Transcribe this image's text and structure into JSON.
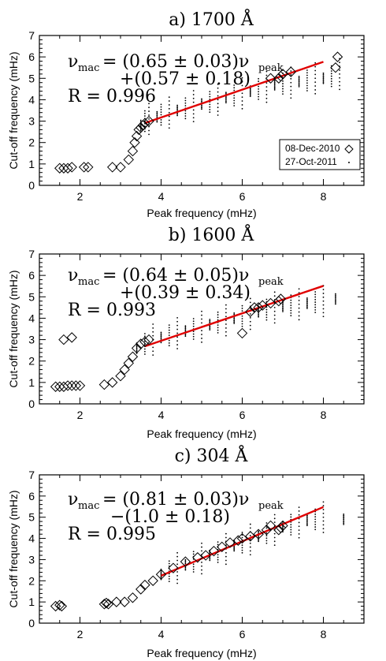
{
  "chart_data": [
    {
      "type": "scatter",
      "title": "a) 1700 Å",
      "xlabel": "Peak frequency (mHz)",
      "ylabel": "Cut-off frequency (mHz)",
      "xlim": [
        1.0,
        9.0
      ],
      "ylim": [
        0,
        7
      ],
      "xticks": [
        2,
        4,
        6,
        8
      ],
      "yticks": [
        0,
        1,
        2,
        3,
        4,
        5,
        6,
        7
      ],
      "equation": {
        "lhs": "ν",
        "lhs_sub": "mac",
        "line1": "= (0.65 ± 0.03)ν",
        "line1_sub": "peak",
        "line2": "+(0.57 ± 0.18)",
        "r": "R = 0.996"
      },
      "fit": {
        "x": [
          3.6,
          8.0
        ],
        "y": [
          2.91,
          5.77
        ],
        "color": "#e00000"
      },
      "legend": {
        "position": "bottom-right",
        "entries": [
          "08-Dec-2010",
          "27-Oct-2011"
        ]
      },
      "series": [
        {
          "name": "08-Dec-2010",
          "marker": "diamond",
          "x": [
            1.5,
            1.6,
            1.7,
            1.8,
            2.1,
            2.2,
            2.8,
            3.0,
            3.2,
            3.3,
            3.35,
            3.4,
            3.45,
            3.5,
            3.55,
            3.6,
            3.7,
            6.7,
            6.9,
            6.95,
            7.0,
            7.2,
            8.3,
            8.35
          ],
          "y": [
            0.8,
            0.8,
            0.8,
            0.85,
            0.85,
            0.85,
            0.85,
            0.85,
            1.2,
            1.6,
            2.0,
            2.3,
            2.6,
            2.7,
            2.8,
            2.9,
            3.0,
            5.0,
            5.0,
            5.1,
            5.2,
            5.3,
            5.5,
            6.0
          ]
        },
        {
          "name": "27-Oct-2011",
          "marker": "dot",
          "x": [
            3.5,
            3.6,
            3.7,
            3.9,
            4.0,
            4.2,
            4.4,
            4.6,
            4.8,
            5.0,
            5.2,
            5.4,
            5.6,
            5.8,
            6.0,
            6.2,
            6.4,
            6.6,
            6.8,
            7.0,
            7.2,
            7.4,
            7.6,
            7.8,
            8.0,
            8.2,
            8.4
          ],
          "y": [
            2.8,
            3.0,
            3.1,
            3.2,
            3.3,
            3.4,
            3.5,
            3.6,
            3.7,
            3.8,
            3.9,
            4.0,
            4.1,
            4.2,
            4.3,
            4.4,
            4.5,
            4.6,
            4.7,
            4.75,
            4.8,
            4.85,
            4.9,
            5.0,
            5.0,
            5.1,
            5.2
          ]
        }
      ]
    },
    {
      "type": "scatter",
      "title": "b) 1600 Å",
      "xlabel": "Peak frequency (mHz)",
      "ylabel": "Cut-off frequency (mHz)",
      "xlim": [
        1.0,
        9.0
      ],
      "ylim": [
        0,
        7
      ],
      "xticks": [
        2,
        4,
        6,
        8
      ],
      "yticks": [
        0,
        1,
        2,
        3,
        4,
        5,
        6,
        7
      ],
      "equation": {
        "lhs": "ν",
        "lhs_sub": "mac",
        "line1": "= (0.64 ± 0.05)ν",
        "line1_sub": "peak",
        "line2": "+(0.39 ± 0.34)",
        "r": "R = 0.993"
      },
      "fit": {
        "x": [
          3.6,
          8.0
        ],
        "y": [
          2.69,
          5.51
        ],
        "color": "#e00000"
      },
      "series": [
        {
          "name": "08-Dec-2010",
          "marker": "diamond",
          "x": [
            1.4,
            1.5,
            1.6,
            1.7,
            1.8,
            1.9,
            2.0,
            1.6,
            1.8,
            2.6,
            2.8,
            3.0,
            3.1,
            3.2,
            3.3,
            3.4,
            3.5,
            3.6,
            3.7,
            6.0,
            6.2,
            6.3,
            6.4,
            6.5,
            6.7,
            6.9,
            6.95
          ],
          "y": [
            0.8,
            0.8,
            0.8,
            0.85,
            0.85,
            0.85,
            0.85,
            3.0,
            3.1,
            0.9,
            1.0,
            1.3,
            1.6,
            1.9,
            2.2,
            2.6,
            2.8,
            2.9,
            3.0,
            3.3,
            4.3,
            4.5,
            4.5,
            4.6,
            4.7,
            4.8,
            4.9
          ]
        },
        {
          "name": "27-Oct-2011",
          "marker": "dot",
          "x": [
            3.4,
            3.6,
            3.8,
            4.0,
            4.2,
            4.4,
            4.6,
            4.8,
            5.0,
            5.2,
            5.4,
            5.6,
            5.8,
            6.0,
            6.2,
            6.4,
            6.6,
            6.8,
            7.0,
            7.2,
            7.4,
            7.6,
            7.8,
            8.0,
            8.3
          ],
          "y": [
            2.6,
            2.8,
            3.0,
            3.1,
            3.2,
            3.3,
            3.4,
            3.5,
            3.6,
            3.7,
            3.8,
            3.9,
            4.0,
            4.1,
            4.2,
            4.3,
            4.4,
            4.5,
            4.55,
            4.6,
            4.65,
            4.7,
            4.75,
            4.8,
            4.9
          ]
        }
      ]
    },
    {
      "type": "scatter",
      "title": "c) 304 Å",
      "xlabel": "Peak frequency (mHz)",
      "ylabel": "Cut-off frequency (mHz)",
      "xlim": [
        1.0,
        9.0
      ],
      "ylim": [
        0,
        7
      ],
      "xticks": [
        2,
        4,
        6,
        8
      ],
      "yticks": [
        0,
        1,
        2,
        3,
        4,
        5,
        6,
        7
      ],
      "equation": {
        "lhs": "ν",
        "lhs_sub": "mac",
        "line1": "= (0.81 ± 0.03)ν",
        "line1_sub": "peak",
        "line2": "−(1.0 ± 0.18)",
        "r": "R = 0.995"
      },
      "fit": {
        "x": [
          4.0,
          8.0
        ],
        "y": [
          2.24,
          5.48
        ],
        "color": "#e00000"
      },
      "series": [
        {
          "name": "08-Dec-2010",
          "marker": "diamond",
          "x": [
            1.4,
            1.5,
            1.55,
            2.6,
            2.65,
            2.7,
            2.9,
            3.1,
            3.3,
            3.5,
            3.6,
            3.8,
            4.0,
            4.3,
            4.6,
            4.9,
            5.1,
            5.3,
            5.5,
            5.7,
            5.9,
            6.0,
            6.2,
            6.4,
            6.6,
            6.7,
            6.9,
            6.95,
            7.0
          ],
          "y": [
            0.8,
            0.85,
            0.8,
            0.9,
            0.95,
            0.9,
            1.0,
            1.0,
            1.2,
            1.6,
            1.8,
            2.0,
            2.3,
            2.6,
            2.9,
            3.1,
            3.2,
            3.4,
            3.6,
            3.8,
            3.9,
            4.0,
            4.1,
            4.2,
            4.4,
            4.6,
            4.4,
            4.5,
            4.6
          ]
        },
        {
          "name": "27-Oct-2011",
          "marker": "dot",
          "x": [
            4.0,
            4.2,
            4.4,
            4.6,
            4.8,
            5.0,
            5.2,
            5.4,
            5.6,
            5.8,
            6.0,
            6.2,
            6.4,
            6.6,
            6.8,
            7.0,
            7.2,
            7.4,
            7.6,
            7.8,
            8.0,
            8.5
          ],
          "y": [
            2.3,
            2.45,
            2.6,
            2.75,
            2.9,
            3.05,
            3.2,
            3.35,
            3.5,
            3.65,
            3.8,
            3.95,
            4.1,
            4.25,
            4.4,
            4.55,
            4.65,
            4.75,
            4.85,
            4.9,
            5.0,
            4.9
          ]
        }
      ]
    }
  ]
}
